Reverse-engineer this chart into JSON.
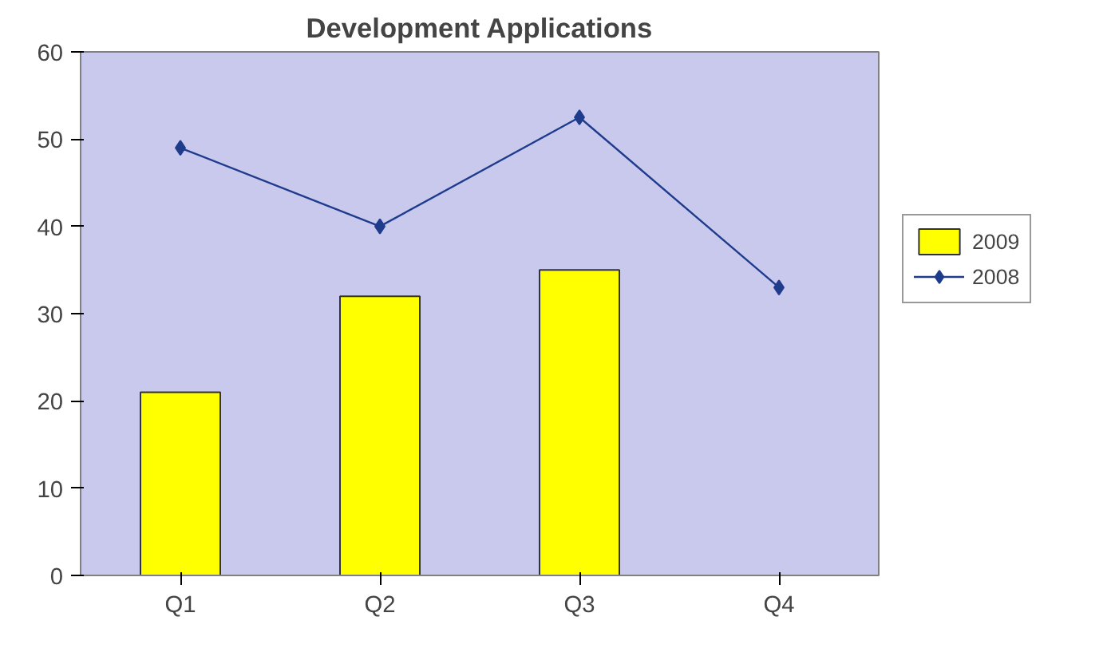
{
  "chart_data": {
    "type": "bar",
    "title": "Development Applications",
    "categories": [
      "Q1",
      "Q2",
      "Q3",
      "Q4"
    ],
    "series": [
      {
        "name": "2009",
        "type": "bar",
        "color": "#ffff00",
        "values": [
          21,
          32,
          35,
          null
        ]
      },
      {
        "name": "2008",
        "type": "line",
        "color": "#1f3c8c",
        "values": [
          49,
          40,
          52.5,
          33
        ]
      }
    ],
    "ylim": [
      0,
      60
    ],
    "yticks": [
      0,
      10,
      20,
      30,
      40,
      50,
      60
    ],
    "grid": false,
    "legend": "right",
    "marker": "diamond",
    "line_style": "solid"
  }
}
